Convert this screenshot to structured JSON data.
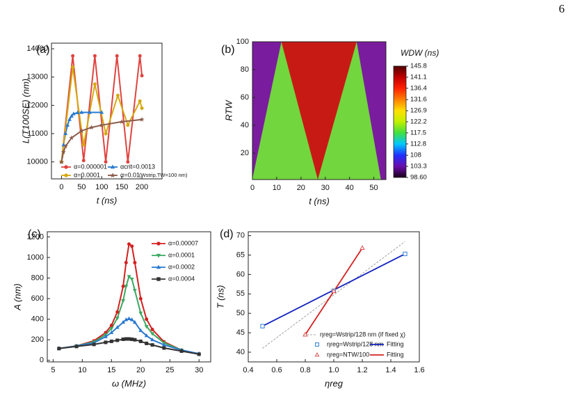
{
  "page_number": "6",
  "chart_data": [
    {
      "type": "line",
      "panel_label": "(a)",
      "x_label": "t (ns)",
      "y_label": "L(T100SE) (nm)",
      "annotation": "(Wstrip,TW=100 nm)",
      "xlim": [
        -25,
        250
      ],
      "ylim": [
        9400,
        14200
      ],
      "xticks": [
        0,
        50,
        100,
        150,
        200
      ],
      "yticks": [
        10000,
        11000,
        12000,
        13000,
        14000
      ],
      "series": [
        {
          "name": "α=0.000001",
          "color": "#e0433f",
          "marker": "circle",
          "x": [
            0,
            28,
            55,
            83,
            110,
            138,
            165,
            195,
            200
          ],
          "values": [
            10000,
            13750,
            10050,
            13750,
            10000,
            13750,
            10000,
            13750,
            13050
          ]
        },
        {
          "name": "αcrit=0.0013",
          "color": "#2a7ad0",
          "marker": "triangle",
          "x": [
            0,
            5,
            10,
            15,
            20,
            25,
            30,
            40,
            50,
            70,
            100
          ],
          "values": [
            10000,
            10600,
            11000,
            11300,
            11500,
            11620,
            11700,
            11740,
            11750,
            11750,
            11750
          ]
        },
        {
          "name": "α=0.0001",
          "color": "#d4aa10",
          "marker": "circle",
          "x": [
            0,
            28,
            55,
            83,
            110,
            140,
            165,
            195,
            200
          ],
          "values": [
            10000,
            13350,
            10600,
            12750,
            11000,
            12350,
            11300,
            12150,
            11900
          ]
        },
        {
          "name": "α=0.01",
          "color": "#8a5a4a",
          "marker": "star",
          "x": [
            0,
            5,
            10,
            25,
            50,
            75,
            100,
            150,
            200
          ],
          "values": [
            10000,
            10350,
            10550,
            10850,
            11100,
            11220,
            11300,
            11420,
            11500
          ]
        }
      ]
    },
    {
      "type": "heatmap",
      "panel_label": "(b)",
      "x_label": "t (ns)",
      "y_label": "RTW",
      "colorbar_title": "WDW (ns)",
      "xlim": [
        0,
        55
      ],
      "ylim": [
        1,
        100
      ],
      "xticks": [
        0,
        10,
        20,
        30,
        40,
        50
      ],
      "yticks": [
        20,
        40,
        60,
        80,
        100
      ],
      "regions": [
        {
          "value": 100,
          "color": "#7a1c9e",
          "t": [
            0,
            12,
            0
          ],
          "R": [
            1,
            100,
            100
          ]
        },
        {
          "value": 117.5,
          "color": "#72d63e",
          "t": [
            0,
            27,
            12
          ],
          "R": [
            1,
            1,
            100
          ]
        },
        {
          "value": 141.1,
          "color": "#c81a14",
          "t": [
            12,
            27,
            43
          ],
          "R": [
            100,
            1,
            100
          ]
        },
        {
          "value": 117.5,
          "color": "#72d63e",
          "t": [
            27,
            53,
            43
          ],
          "R": [
            1,
            1,
            100
          ]
        },
        {
          "value": 100,
          "color": "#7a1c9e",
          "t": [
            53,
            55,
            55,
            43
          ],
          "R": [
            1,
            1,
            100,
            100
          ]
        }
      ],
      "colorbar": {
        "ticks": [
          {
            "value": 98.6,
            "label": "98.60"
          },
          103.3,
          108.0,
          112.8,
          117.5,
          122.2,
          126.9,
          131.6,
          136.4,
          141.1,
          145.8
        ],
        "colors": [
          "#1a0015",
          "#6a0dad",
          "#2030ff",
          "#00c8ff",
          "#40e040",
          "#c0f000",
          "#ffe000",
          "#ff8000",
          "#ff2000",
          "#c00000",
          "#500000"
        ]
      }
    },
    {
      "type": "line",
      "panel_label": "(c)",
      "x_label": "ω (MHz)",
      "y_label": "A (nm)",
      "xlim": [
        4,
        32
      ],
      "ylim": [
        -15,
        1250
      ],
      "xticks": [
        5,
        10,
        15,
        20,
        25,
        30
      ],
      "yticks": [
        0,
        200,
        400,
        600,
        800,
        1000,
        1200
      ],
      "x": [
        6,
        9,
        12,
        14,
        15,
        16,
        17,
        17.5,
        18,
        18.5,
        19,
        20,
        21,
        22,
        24,
        27,
        30
      ],
      "series": [
        {
          "name": "α=0.00007",
          "color": "#d42020",
          "marker": "circle",
          "values": [
            115,
            140,
            190,
            270,
            340,
            470,
            720,
            950,
            1130,
            1110,
            950,
            600,
            400,
            300,
            180,
            100,
            60
          ]
        },
        {
          "name": "α=0.0001",
          "color": "#3aa860",
          "marker": "triangle-down",
          "values": [
            115,
            140,
            180,
            250,
            310,
            410,
            580,
            720,
            815,
            790,
            680,
            460,
            330,
            260,
            170,
            100,
            60
          ]
        },
        {
          "name": "α=0.0002",
          "color": "#2a7ad0",
          "marker": "triangle",
          "values": [
            115,
            140,
            170,
            230,
            270,
            320,
            370,
            395,
            405,
            395,
            370,
            290,
            240,
            200,
            150,
            100,
            65
          ]
        },
        {
          "name": "α=0.0004",
          "color": "#333333",
          "marker": "square",
          "values": [
            115,
            135,
            155,
            175,
            185,
            195,
            205,
            208,
            208,
            205,
            200,
            185,
            165,
            150,
            120,
            90,
            60
          ]
        }
      ]
    },
    {
      "type": "scatter",
      "panel_label": "(d)",
      "x_label": "ηreg",
      "y_label": "T (ns)",
      "xlim": [
        0.4,
        1.6
      ],
      "ylim": [
        37.5,
        71
      ],
      "xticks": [
        0.4,
        0.6,
        0.8,
        {
          "value": 1,
          "label": "1.0"
        },
        1.2,
        1.4,
        1.6
      ],
      "yticks": [
        40,
        45,
        50,
        55,
        60,
        65,
        70
      ],
      "series": [
        {
          "name": "ηreg=Wstrip/128 nm (if fixed χ)",
          "color": "#888888",
          "style": "dashed",
          "x": [
            0.5,
            1.5
          ],
          "values": [
            41,
            68.5
          ]
        },
        {
          "name": "ηreg=Wstrip/128 nm",
          "color": "#2a7ad0",
          "marker": "square",
          "x": [
            0.5,
            1.0,
            1.5
          ],
          "values": [
            46.7,
            55.8,
            65.3
          ]
        },
        {
          "name": "Fitting",
          "color": "#1020c0",
          "style": "solid",
          "x": [
            0.5,
            1.5
          ],
          "values": [
            46.7,
            65.3
          ]
        },
        {
          "name": "ηreg=NTW/100",
          "color": "#e05050",
          "marker": "triangle",
          "x": [
            0.8,
            1.0,
            1.2
          ],
          "values": [
            44.5,
            55.7,
            66.8
          ]
        },
        {
          "name": "Fitting",
          "color": "#d42020",
          "style": "solid",
          "x": [
            0.8,
            1.2
          ],
          "values": [
            44.5,
            66.8
          ]
        }
      ]
    }
  ]
}
